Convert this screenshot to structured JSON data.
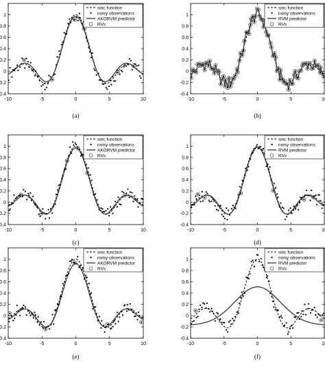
{
  "chart_data": [
    {
      "type": "line",
      "caption": "(a)",
      "xlim": [
        -10,
        10
      ],
      "ylim": [
        -0.4,
        1.2
      ],
      "xticks": [
        "-10",
        "-5",
        "0",
        "5",
        "10"
      ],
      "yticks": [
        "-0.4",
        "-0.2",
        "0",
        "0.2",
        "0.4",
        "0.6",
        "0.8",
        "1"
      ],
      "legend": [
        "sinc function",
        "noisy observations",
        "AKORVM predictor",
        "RVs"
      ],
      "predictor": {
        "kind": "sinc",
        "amp": 0.95,
        "offset": 0.02
      },
      "rvs_x": [
        -7.6,
        -3.5,
        -0.1,
        1.2,
        6.3,
        8.5
      ]
    },
    {
      "type": "line",
      "caption": "(b)",
      "xlim": [
        -10,
        10
      ],
      "ylim": [
        -0.4,
        1.2
      ],
      "xticks": [
        "-10",
        "-5",
        "0",
        "5",
        "10"
      ],
      "yticks": [
        "-0.4",
        "-0.2",
        "0",
        "0.2",
        "0.4",
        "0.6",
        "0.8",
        "1"
      ],
      "legend": [
        "sinc function",
        "noisy observations",
        "RVM predictor",
        "RVs"
      ],
      "predictor": {
        "kind": "interp",
        "amp": 1.0,
        "offset": 0
      },
      "rvs_x": "all_noisy"
    },
    {
      "type": "line",
      "caption": "(c)",
      "xlim": [
        -10,
        10
      ],
      "ylim": [
        -0.4,
        1.2
      ],
      "xticks": [
        "-10",
        "-5",
        "0",
        "5",
        "10"
      ],
      "yticks": [
        "-0.4",
        "-0.2",
        "0",
        "0.2",
        "0.4",
        "0.6",
        "0.8",
        "1"
      ],
      "legend": [
        "sinc function",
        "noisy observations",
        "AKORVM predictor",
        "RVs"
      ],
      "predictor": {
        "kind": "sinc",
        "amp": 0.97,
        "offset": 0.0
      },
      "rvs_x": [
        -8.0,
        -5.0,
        -1.2,
        0.3,
        1.7,
        7.3
      ]
    },
    {
      "type": "line",
      "caption": "(d)",
      "xlim": [
        -10,
        10
      ],
      "ylim": [
        -0.4,
        1.2
      ],
      "xticks": [
        "-10",
        "-5",
        "0",
        "5",
        "10"
      ],
      "yticks": [
        "-0.4",
        "-0.2",
        "0",
        "0.2",
        "0.4",
        "0.6",
        "0.8",
        "1"
      ],
      "legend": [
        "sinc function",
        "noisy observations",
        "RVM predictor",
        "RVs"
      ],
      "predictor": {
        "kind": "sinc",
        "amp": 0.98,
        "offset": 0.0
      },
      "rvs_x": [
        -8.8,
        -7.8,
        -2.5,
        2.4,
        7.0,
        8.2
      ]
    },
    {
      "type": "line",
      "caption": "(e)",
      "xlim": [
        -10,
        10
      ],
      "ylim": [
        -0.4,
        1.2
      ],
      "xticks": [
        "-10",
        "-5",
        "0",
        "5",
        "10"
      ],
      "yticks": [
        "-0.4",
        "-0.2",
        "0",
        "0.2",
        "0.4",
        "0.6",
        "0.8",
        "1"
      ],
      "legend": [
        "sinc function",
        "noisy observations",
        "AKORVM predictor",
        "RVs"
      ],
      "predictor": {
        "kind": "sinc",
        "amp": 0.92,
        "offset": 0.0
      },
      "rvs_x": [
        -9.8,
        -4.5,
        -0.2,
        4.6,
        9.7
      ]
    },
    {
      "type": "line",
      "caption": "(f)",
      "xlim": [
        -10,
        10
      ],
      "ylim": [
        -0.4,
        1.2
      ],
      "xticks": [
        "-10",
        "-5",
        "0",
        "5",
        "10"
      ],
      "yticks": [
        "-0.4",
        "-0.2",
        "0",
        "0.2",
        "0.4",
        "0.6",
        "0.8",
        "1"
      ],
      "legend": [
        "sinc function",
        "noisy observations",
        "RVM predictor",
        "RVs"
      ],
      "predictor": {
        "kind": "gauss",
        "amp": 0.68,
        "width": 3.4,
        "offset": -0.17
      },
      "rvs_x": [
        -9.3,
        9.6
      ]
    }
  ]
}
